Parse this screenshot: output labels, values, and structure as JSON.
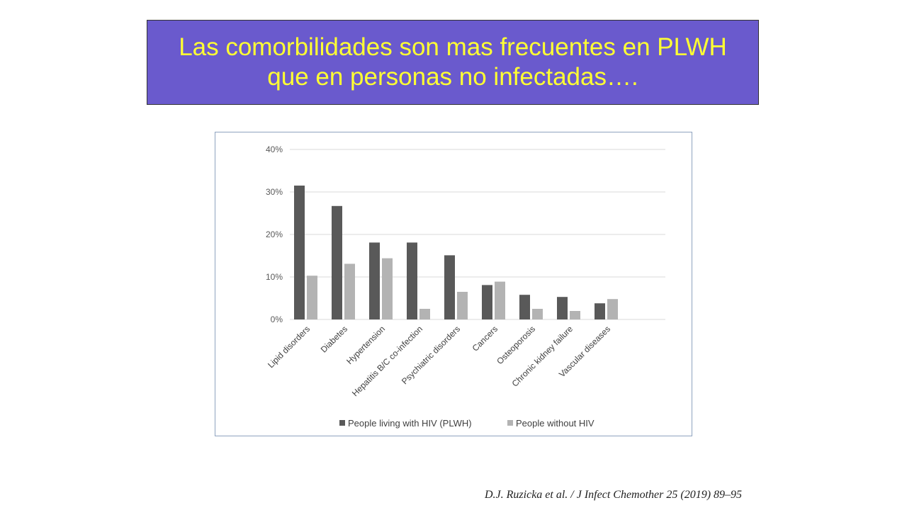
{
  "slide": {
    "title_line1": "Las comorbilidades son mas frecuentes en PLWH",
    "title_line2": "que en personas no infectadas….",
    "citation": "D.J. Ruzicka et al. / J Infect Chemother 25 (2019) 89–95"
  },
  "chart_data": {
    "type": "bar",
    "categories": [
      "Lipid disorders",
      "Diabetes",
      "Hypertension",
      "Hepatitis B/C co-infection",
      "Psychiatric disorders",
      "Cancers",
      "Osteoporosis",
      "Chronic kidney failure",
      "Vascular diseases"
    ],
    "series": [
      {
        "name": "People living with HIV (PLWH)",
        "color": "#595959",
        "values": [
          31.5,
          26.7,
          18.1,
          18.1,
          15.1,
          8.1,
          5.8,
          5.3,
          3.8
        ]
      },
      {
        "name": "People without HIV",
        "color": "#b3b3b3",
        "values": [
          10.3,
          13.1,
          14.4,
          2.5,
          6.5,
          8.9,
          2.5,
          2.0,
          4.8
        ]
      }
    ],
    "yticks": [
      "0%",
      "10%",
      "20%",
      "30%",
      "40%"
    ],
    "ylim": [
      0,
      40
    ],
    "grid": true,
    "legend": "bottom"
  }
}
